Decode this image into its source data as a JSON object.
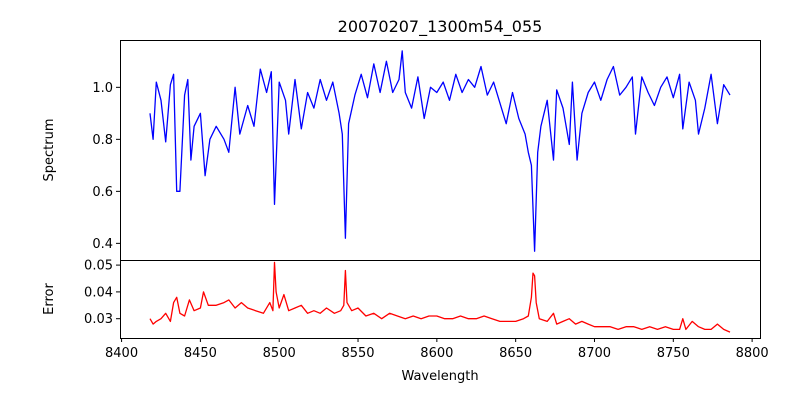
{
  "chart_data": [
    {
      "type": "line",
      "title": "20070207_1300m54_055",
      "xlabel": "",
      "ylabel": "Spectrum",
      "xlim": [
        8399,
        8805
      ],
      "ylim": [
        0.336,
        1.182
      ],
      "yticks": [
        0.4,
        0.6,
        0.8,
        1.0
      ],
      "ytick_labels": [
        "0.4",
        "0.6",
        "0.8",
        "1.0"
      ],
      "grid": false,
      "series": [
        {
          "name": "Spectrum",
          "color": "#0000ff",
          "x": [
            8418,
            8420,
            8422,
            8425,
            8428,
            8431,
            8433,
            8435,
            8437,
            8440,
            8442,
            8444,
            8446,
            8450,
            8453,
            8456,
            8460,
            8465,
            8468,
            8472,
            8475,
            8480,
            8484,
            8488,
            8492,
            8495,
            8497,
            8500,
            8504,
            8506,
            8510,
            8514,
            8518,
            8522,
            8526,
            8530,
            8534,
            8538,
            8540,
            8542,
            8544,
            8548,
            8552,
            8556,
            8560,
            8564,
            8568,
            8572,
            8576,
            8578,
            8580,
            8584,
            8588,
            8592,
            8596,
            8600,
            8604,
            8608,
            8612,
            8616,
            8620,
            8624,
            8628,
            8632,
            8636,
            8640,
            8644,
            8648,
            8652,
            8656,
            8658,
            8660,
            8662,
            8664,
            8666,
            8670,
            8674,
            8676,
            8680,
            8684,
            8686,
            8689,
            8692,
            8696,
            8700,
            8704,
            8708,
            8712,
            8716,
            8720,
            8724,
            8726,
            8730,
            8734,
            8738,
            8742,
            8746,
            8750,
            8754,
            8756,
            8760,
            8764,
            8766,
            8770,
            8774,
            8778,
            8782,
            8786
          ],
          "y": [
            0.9,
            0.8,
            1.02,
            0.95,
            0.79,
            1.01,
            1.05,
            0.6,
            0.6,
            0.97,
            1.03,
            0.72,
            0.85,
            0.9,
            0.66,
            0.8,
            0.85,
            0.8,
            0.75,
            1.0,
            0.82,
            0.93,
            0.85,
            1.07,
            0.98,
            1.06,
            0.55,
            1.02,
            0.95,
            0.82,
            1.03,
            0.84,
            0.98,
            0.92,
            1.03,
            0.95,
            1.02,
            0.9,
            0.82,
            0.42,
            0.86,
            0.97,
            1.05,
            0.96,
            1.09,
            0.98,
            1.1,
            0.98,
            1.03,
            1.14,
            0.98,
            0.92,
            1.04,
            0.88,
            1.0,
            0.98,
            1.02,
            0.95,
            1.05,
            0.98,
            1.03,
            1.0,
            1.08,
            0.97,
            1.02,
            0.94,
            0.86,
            0.98,
            0.88,
            0.82,
            0.75,
            0.7,
            0.37,
            0.75,
            0.85,
            0.95,
            0.72,
            0.99,
            0.92,
            0.78,
            1.02,
            0.72,
            0.9,
            0.98,
            1.02,
            0.95,
            1.03,
            1.08,
            0.97,
            1.0,
            1.04,
            0.82,
            1.04,
            0.98,
            0.93,
            1.0,
            1.04,
            0.96,
            1.05,
            0.84,
            1.02,
            0.95,
            0.82,
            0.92,
            1.05,
            0.86,
            1.01,
            0.97
          ]
        }
      ]
    },
    {
      "type": "line",
      "title": "",
      "xlabel": "Wavelength",
      "ylabel": "Error",
      "xlim": [
        8399,
        8805
      ],
      "ylim": [
        0.0228,
        0.0519
      ],
      "xticks": [
        8400,
        8450,
        8500,
        8550,
        8600,
        8650,
        8700,
        8750,
        8800
      ],
      "xtick_labels": [
        "8400",
        "8450",
        "8500",
        "8550",
        "8600",
        "8650",
        "8700",
        "8750",
        "8800"
      ],
      "yticks": [
        0.03,
        0.04,
        0.05
      ],
      "ytick_labels": [
        "0.03",
        "0.04",
        "0.05"
      ],
      "grid": false,
      "series": [
        {
          "name": "Error",
          "color": "#ff0000",
          "x": [
            8418,
            8420,
            8422,
            8425,
            8428,
            8431,
            8433,
            8435,
            8437,
            8440,
            8443,
            8446,
            8450,
            8452,
            8455,
            8460,
            8465,
            8468,
            8472,
            8476,
            8480,
            8485,
            8490,
            8494,
            8496,
            8497,
            8498,
            8500,
            8503,
            8506,
            8510,
            8514,
            8518,
            8522,
            8526,
            8530,
            8535,
            8539,
            8541,
            8542,
            8543,
            8546,
            8550,
            8555,
            8560,
            8565,
            8570,
            8575,
            8580,
            8585,
            8590,
            8595,
            8600,
            8605,
            8610,
            8615,
            8620,
            8625,
            8630,
            8635,
            8640,
            8645,
            8650,
            8655,
            8658,
            8660,
            8661,
            8662,
            8663,
            8665,
            8670,
            8674,
            8676,
            8680,
            8684,
            8688,
            8692,
            8696,
            8700,
            8705,
            8710,
            8715,
            8720,
            8725,
            8730,
            8735,
            8740,
            8745,
            8750,
            8754,
            8756,
            8758,
            8762,
            8766,
            8770,
            8774,
            8778,
            8782,
            8786
          ],
          "y": [
            0.03,
            0.028,
            0.029,
            0.03,
            0.032,
            0.029,
            0.036,
            0.038,
            0.032,
            0.031,
            0.037,
            0.033,
            0.034,
            0.04,
            0.035,
            0.035,
            0.036,
            0.037,
            0.034,
            0.036,
            0.034,
            0.033,
            0.032,
            0.036,
            0.033,
            0.051,
            0.04,
            0.034,
            0.039,
            0.033,
            0.034,
            0.035,
            0.032,
            0.033,
            0.032,
            0.034,
            0.032,
            0.033,
            0.035,
            0.048,
            0.036,
            0.033,
            0.034,
            0.031,
            0.032,
            0.03,
            0.032,
            0.031,
            0.03,
            0.031,
            0.03,
            0.031,
            0.031,
            0.03,
            0.03,
            0.031,
            0.03,
            0.03,
            0.031,
            0.03,
            0.029,
            0.029,
            0.029,
            0.03,
            0.031,
            0.038,
            0.047,
            0.046,
            0.036,
            0.03,
            0.029,
            0.032,
            0.028,
            0.029,
            0.03,
            0.028,
            0.029,
            0.028,
            0.027,
            0.027,
            0.027,
            0.026,
            0.027,
            0.027,
            0.026,
            0.027,
            0.026,
            0.027,
            0.026,
            0.026,
            0.03,
            0.026,
            0.029,
            0.027,
            0.026,
            0.026,
            0.028,
            0.026,
            0.025
          ]
        }
      ]
    }
  ]
}
